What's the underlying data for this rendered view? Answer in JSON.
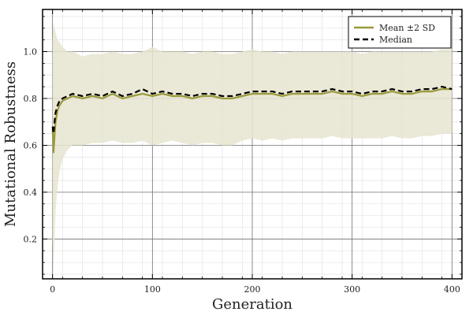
{
  "chart_data": {
    "type": "line",
    "title": "",
    "xlabel": "Generation",
    "ylabel": "Mutational Robustness",
    "xlim": [
      -10,
      410
    ],
    "ylim": [
      0.03,
      1.18
    ],
    "xticks": [
      0,
      100,
      200,
      300,
      400
    ],
    "xtick_labels": [
      "0",
      "100",
      "200",
      "300",
      "400"
    ],
    "yticks": [
      0.2,
      0.4,
      0.6,
      0.8,
      1.0
    ],
    "ytick_labels": [
      "0.2",
      "0.4",
      "0.6",
      "0.8",
      "1.0"
    ],
    "grid": true,
    "minor_grid": true,
    "legend_position": "top-right",
    "colors": {
      "mean": "#9a9a3c",
      "band": "#e6e4cf",
      "median": "#000000",
      "grid_major": "#6f6f6f",
      "grid_minor": "#e3e3e3"
    },
    "series": [
      {
        "name": "Mean ±2 SD",
        "style": "solid line with shaded ±2 SD band",
        "x": [
          0,
          1,
          2,
          3,
          5,
          7,
          10,
          15,
          20,
          30,
          40,
          50,
          60,
          70,
          80,
          90,
          100,
          110,
          120,
          130,
          140,
          150,
          160,
          170,
          180,
          190,
          200,
          210,
          220,
          230,
          240,
          250,
          260,
          270,
          280,
          290,
          300,
          310,
          320,
          330,
          340,
          350,
          360,
          370,
          380,
          390,
          400
        ],
        "values": [
          0.67,
          0.57,
          0.64,
          0.7,
          0.75,
          0.77,
          0.79,
          0.8,
          0.81,
          0.8,
          0.81,
          0.8,
          0.82,
          0.8,
          0.81,
          0.82,
          0.81,
          0.82,
          0.81,
          0.81,
          0.8,
          0.81,
          0.81,
          0.8,
          0.8,
          0.81,
          0.82,
          0.82,
          0.82,
          0.81,
          0.82,
          0.82,
          0.82,
          0.82,
          0.83,
          0.82,
          0.82,
          0.81,
          0.82,
          0.82,
          0.83,
          0.82,
          0.82,
          0.83,
          0.83,
          0.84,
          0.84
        ],
        "lower": [
          0.2,
          0.05,
          0.2,
          0.32,
          0.42,
          0.49,
          0.54,
          0.58,
          0.6,
          0.6,
          0.61,
          0.61,
          0.62,
          0.61,
          0.61,
          0.62,
          0.6,
          0.61,
          0.62,
          0.61,
          0.6,
          0.61,
          0.61,
          0.6,
          0.6,
          0.62,
          0.63,
          0.62,
          0.63,
          0.62,
          0.63,
          0.63,
          0.63,
          0.63,
          0.64,
          0.63,
          0.63,
          0.63,
          0.63,
          0.63,
          0.64,
          0.63,
          0.63,
          0.64,
          0.64,
          0.65,
          0.65
        ],
        "upper": [
          1.05,
          1.12,
          1.1,
          1.08,
          1.05,
          1.04,
          1.02,
          1.0,
          1.0,
          0.98,
          0.99,
          0.99,
          1.0,
          0.99,
          0.99,
          1.0,
          1.02,
          1.0,
          1.0,
          1.0,
          0.99,
          1.0,
          1.0,
          0.99,
          0.99,
          1.0,
          1.01,
          1.0,
          1.0,
          0.99,
          1.0,
          1.0,
          1.0,
          1.0,
          1.0,
          1.0,
          1.0,
          0.99,
          1.0,
          1.0,
          1.0,
          1.0,
          1.0,
          1.0,
          1.0,
          1.01,
          1.01
        ]
      },
      {
        "name": "Median",
        "style": "dashed line",
        "x": [
          0,
          1,
          2,
          3,
          5,
          7,
          10,
          15,
          20,
          30,
          40,
          50,
          60,
          70,
          80,
          90,
          100,
          110,
          120,
          130,
          140,
          150,
          160,
          170,
          180,
          190,
          200,
          210,
          220,
          230,
          240,
          250,
          260,
          270,
          280,
          290,
          300,
          310,
          320,
          330,
          340,
          350,
          360,
          370,
          380,
          390,
          400
        ],
        "values": [
          0.68,
          0.65,
          0.7,
          0.74,
          0.77,
          0.79,
          0.8,
          0.81,
          0.82,
          0.81,
          0.82,
          0.81,
          0.83,
          0.81,
          0.82,
          0.84,
          0.82,
          0.83,
          0.82,
          0.82,
          0.81,
          0.82,
          0.82,
          0.81,
          0.81,
          0.82,
          0.83,
          0.83,
          0.83,
          0.82,
          0.83,
          0.83,
          0.83,
          0.83,
          0.84,
          0.83,
          0.83,
          0.82,
          0.83,
          0.83,
          0.84,
          0.83,
          0.83,
          0.84,
          0.84,
          0.85,
          0.84
        ]
      }
    ]
  }
}
